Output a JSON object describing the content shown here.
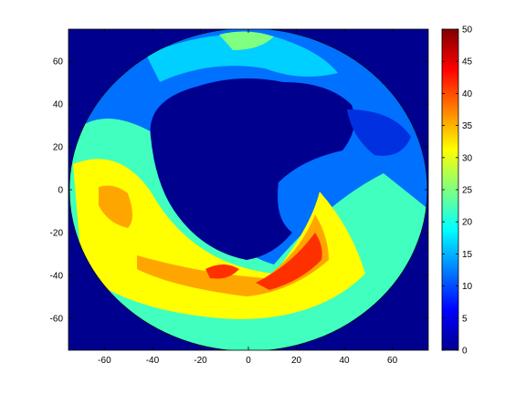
{
  "chart_data": {
    "type": "heatmap",
    "subtype": "filled-contour",
    "title": "",
    "xlabel": "",
    "ylabel": "",
    "xlim": [
      -75,
      75
    ],
    "ylim": [
      -75,
      75
    ],
    "xticks": [
      -60,
      -40,
      -20,
      0,
      20,
      40,
      60
    ],
    "yticks": [
      60,
      40,
      20,
      0,
      -20,
      -40,
      -60
    ],
    "colorbar": {
      "colormap": "jet",
      "range": [
        0,
        50
      ],
      "ticks": [
        50,
        45,
        40,
        35,
        30,
        25,
        20,
        15,
        10,
        5,
        0
      ]
    },
    "background_color": "#00008f",
    "regions": [
      {
        "description": "circular domain edge (polar stereographic)",
        "center": [
          0,
          0
        ],
        "radius": 72
      },
      {
        "description": "central low-value area (~0)",
        "value": 0
      },
      {
        "description": "high-value band around south-southwest",
        "value_range": [
          30,
          45
        ]
      },
      {
        "description": "maximum near x=20..35, y=-25..-40",
        "value": 45
      }
    ]
  }
}
